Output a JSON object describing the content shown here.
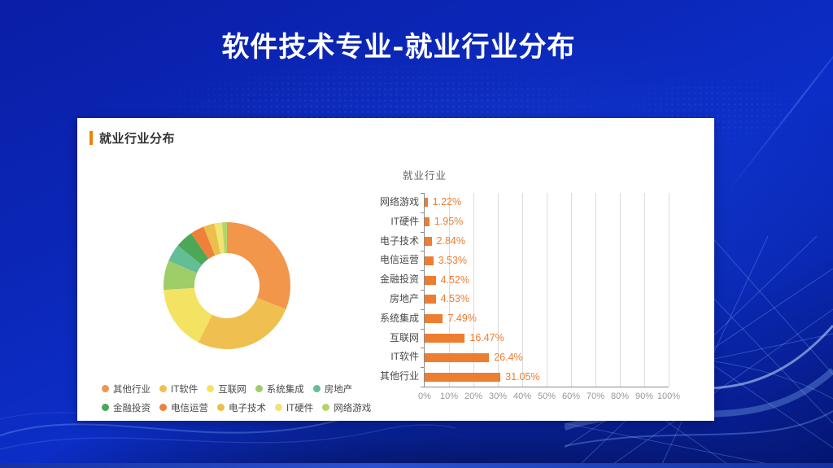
{
  "slide": {
    "title": "软件技术专业-就业行业分布"
  },
  "panel": {
    "header": "就业行业分布"
  },
  "chart_data": [
    {
      "type": "pie",
      "subtype": "donut",
      "title": "",
      "labels": [
        "其他行业",
        "IT软件",
        "互联网",
        "系统集成",
        "房地产",
        "金融投资",
        "电信运营",
        "电子技术",
        "IT硬件",
        "网络游戏"
      ],
      "values": [
        31.05,
        26.4,
        16.47,
        7.49,
        4.53,
        4.52,
        3.53,
        2.84,
        1.95,
        1.22
      ],
      "colors": [
        "#F2964B",
        "#EFC050",
        "#F4E263",
        "#9FCD67",
        "#63BD95",
        "#4CA757",
        "#EE8139",
        "#EDBE4C",
        "#F0E472",
        "#B2D56A"
      ],
      "start_angle_deg": 0,
      "direction": "clockwise",
      "legend_position": "bottom",
      "legend_rows": [
        [
          "其他行业",
          "IT软件",
          "互联网",
          "系统集成",
          "房地产"
        ],
        [
          "金融投资",
          "电信运营",
          "电子技术",
          "IT硬件",
          "网络游戏"
        ]
      ]
    },
    {
      "type": "bar",
      "orientation": "horizontal",
      "title": "就业行业",
      "categories": [
        "网络游戏",
        "IT硬件",
        "电子技术",
        "电信运营",
        "金融投资",
        "房地产",
        "系统集成",
        "互联网",
        "IT软件",
        "其他行业"
      ],
      "values": [
        1.22,
        1.95,
        2.84,
        3.53,
        4.52,
        4.53,
        7.49,
        16.47,
        26.4,
        31.05
      ],
      "value_labels": [
        "1.22%",
        "1.95%",
        "2.84%",
        "3.53%",
        "4.52%",
        "4.53%",
        "7.49%",
        "16.47%",
        "26.4%",
        "31.05%"
      ],
      "x_ticks": [
        "0%",
        "10%",
        "20%",
        "30%",
        "40%",
        "50%",
        "60%",
        "70%",
        "80%",
        "90%",
        "100%"
      ],
      "xlim": [
        0,
        100
      ],
      "grid": true,
      "bar_color": "#ED7D31",
      "value_label_color": "#ED7D31"
    }
  ],
  "colors": {
    "accent_orange": "#F08300",
    "bar_orange": "#ED7D31",
    "panel_background": "#FFFFFF",
    "background_blue": "#0B2BBE"
  }
}
